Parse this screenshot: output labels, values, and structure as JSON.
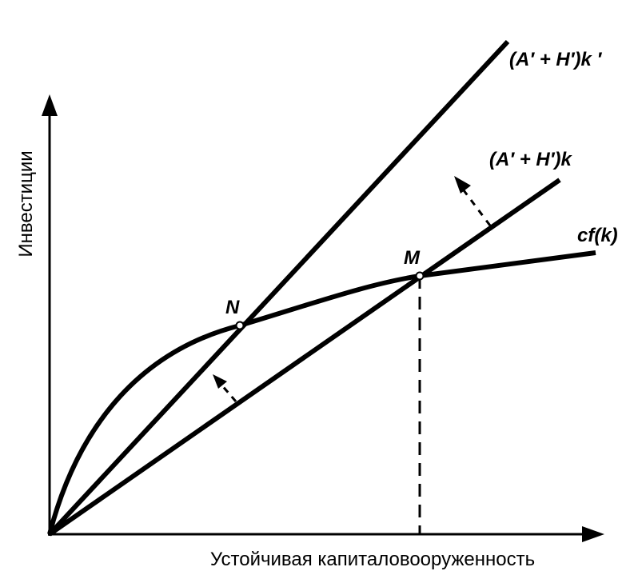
{
  "axes": {
    "y_label": "Инвестиции",
    "x_label": "Устойчивая капиталовооруженность"
  },
  "lines": {
    "steep_line_label": "(A′ + H′)k ′",
    "base_line_label": "(A′ + H′)k",
    "curve_label": "cf(k)"
  },
  "points": {
    "n_label": "N",
    "m_label": "M"
  }
}
